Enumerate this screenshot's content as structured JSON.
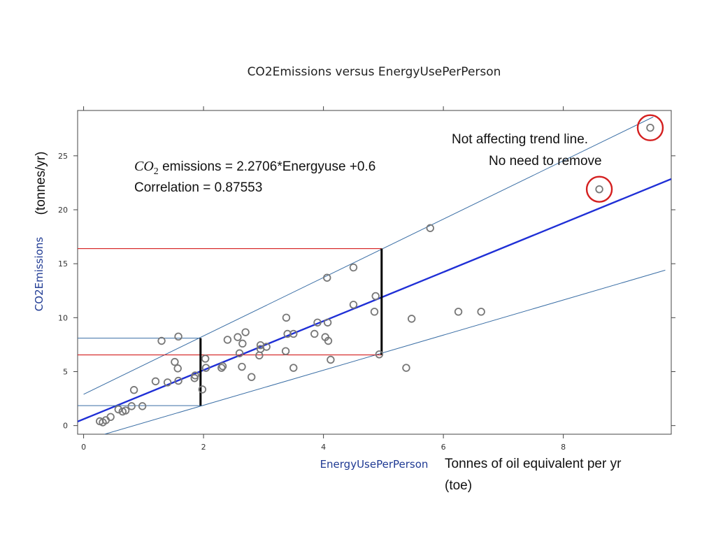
{
  "chart_data": {
    "type": "scatter",
    "title": "CO2Emissions versus EnergyUsePerPerson",
    "xlabel": "EnergyUsePerPerson",
    "ylabel": "CO2Emissions",
    "ylabel_extra": "(tonnes/yr)",
    "xlabel_extra_line1": "Tonnes of oil equivalent per yr",
    "xlabel_extra_line2": "(toe)",
    "xlim": [
      -0.1,
      9.8
    ],
    "ylim": [
      -0.8,
      29.2
    ],
    "xticks": [
      0,
      2,
      4,
      6,
      8
    ],
    "yticks": [
      0,
      5,
      10,
      15,
      20,
      25
    ],
    "xtick_labels": [
      "0",
      "2",
      "4",
      "6",
      "8"
    ],
    "ytick_labels": [
      "0",
      "5",
      "10",
      "15",
      "20",
      "25"
    ],
    "fit": {
      "slope": 2.2706,
      "intercept": 0.6,
      "color": "#1f2fd6"
    },
    "prediction_band": {
      "upper": [
        [
          0.0,
          2.9
        ],
        [
          9.5,
          28.6
        ]
      ],
      "lower": [
        [
          0.35,
          -0.8
        ],
        [
          9.7,
          14.4
        ]
      ],
      "color": "#3a6ea5"
    },
    "equation": {
      "prefix_italic": "CO",
      "subscript": "2",
      "text": " emissions = 2.2706*Energyuse +0.6"
    },
    "correlation": "Correlation = 0.87553",
    "outlier_note_line1": "Not affecting trend line.",
    "outlier_note_line2": "No need to remove",
    "outlier_circle_color": "#d41f1f",
    "outliers": [
      [
        9.45,
        27.6
      ],
      [
        8.6,
        21.9
      ]
    ],
    "guides": {
      "at_x2": {
        "x": 1.95,
        "lower": 1.85,
        "upper": 8.1,
        "fit": 6.55
      },
      "at_x5": {
        "x": 4.97,
        "upper": 16.4,
        "fit": 6.55
      }
    },
    "points": [
      [
        0.27,
        0.4
      ],
      [
        0.32,
        0.3
      ],
      [
        0.37,
        0.5
      ],
      [
        0.45,
        0.8
      ],
      [
        0.58,
        1.5
      ],
      [
        0.65,
        1.3
      ],
      [
        0.7,
        1.4
      ],
      [
        0.8,
        1.8
      ],
      [
        0.84,
        3.3
      ],
      [
        0.98,
        1.8
      ],
      [
        1.2,
        4.1
      ],
      [
        1.3,
        7.85
      ],
      [
        1.4,
        4.0
      ],
      [
        1.52,
        5.9
      ],
      [
        1.57,
        5.3
      ],
      [
        1.58,
        4.15
      ],
      [
        1.58,
        8.25
      ],
      [
        1.85,
        4.4
      ],
      [
        1.86,
        4.65
      ],
      [
        1.98,
        3.35
      ],
      [
        2.03,
        6.2
      ],
      [
        2.04,
        5.35
      ],
      [
        2.3,
        5.35
      ],
      [
        2.32,
        5.5
      ],
      [
        2.4,
        7.95
      ],
      [
        2.57,
        8.2
      ],
      [
        2.6,
        6.7
      ],
      [
        2.64,
        5.45
      ],
      [
        2.65,
        7.6
      ],
      [
        2.7,
        8.65
      ],
      [
        2.8,
        4.5
      ],
      [
        2.93,
        6.5
      ],
      [
        2.95,
        7.1
      ],
      [
        2.95,
        7.45
      ],
      [
        3.05,
        7.3
      ],
      [
        3.37,
        6.9
      ],
      [
        3.38,
        10.0
      ],
      [
        3.4,
        8.5
      ],
      [
        3.5,
        8.5
      ],
      [
        3.5,
        5.35
      ],
      [
        3.85,
        8.5
      ],
      [
        3.9,
        9.55
      ],
      [
        4.03,
        8.2
      ],
      [
        4.06,
        13.7
      ],
      [
        4.07,
        9.55
      ],
      [
        4.08,
        7.85
      ],
      [
        4.12,
        6.1
      ],
      [
        4.5,
        14.65
      ],
      [
        4.5,
        11.2
      ],
      [
        4.85,
        10.55
      ],
      [
        4.87,
        12.0
      ],
      [
        4.93,
        6.6
      ],
      [
        5.38,
        5.35
      ],
      [
        5.47,
        9.9
      ],
      [
        5.78,
        18.3
      ],
      [
        6.25,
        10.55
      ],
      [
        6.63,
        10.55
      ],
      [
        8.6,
        21.9
      ],
      [
        9.45,
        27.6
      ]
    ]
  }
}
